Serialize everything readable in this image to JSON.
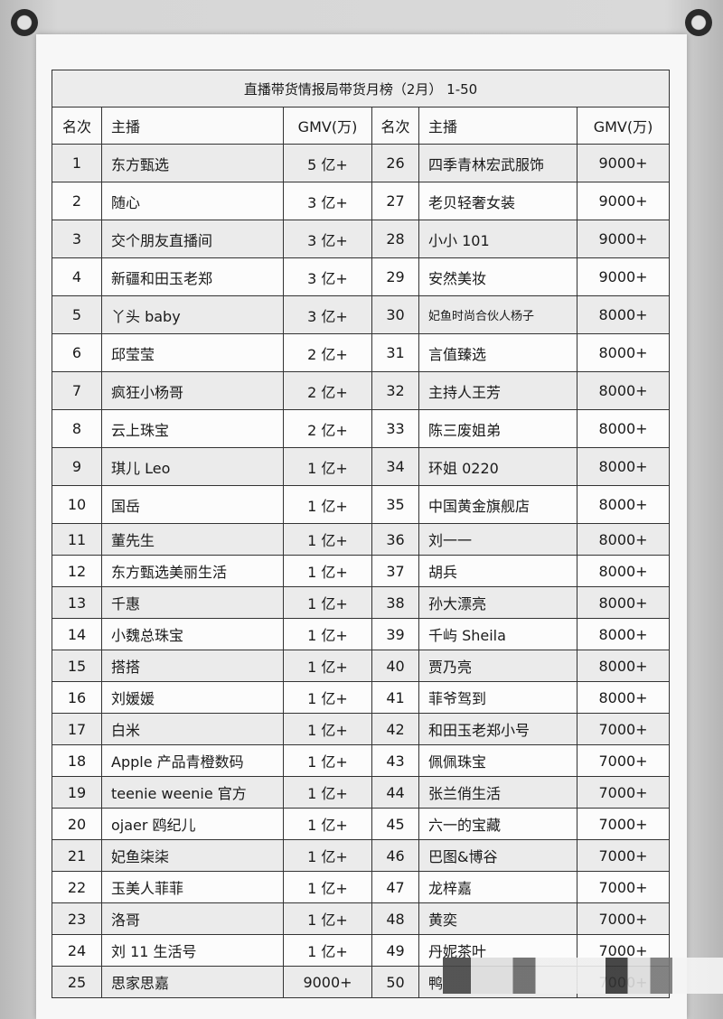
{
  "title": "直播带货情报局带货月榜（2月） 1-50",
  "headers": {
    "rank": "名次",
    "host": "主播",
    "gmv": "GMV(万)"
  },
  "left": [
    [
      "1",
      "东方甄选",
      "5 亿+"
    ],
    [
      "2",
      "随心",
      "3 亿+"
    ],
    [
      "3",
      "交个朋友直播间",
      "3 亿+"
    ],
    [
      "4",
      "新疆和田玉老郑",
      "3 亿+"
    ],
    [
      "5",
      "丫头 baby",
      "3 亿+"
    ],
    [
      "6",
      "邱莹莹",
      "2 亿+"
    ],
    [
      "7",
      "疯狂小杨哥",
      "2 亿+"
    ],
    [
      "8",
      "云上珠宝",
      "2 亿+"
    ],
    [
      "9",
      "琪儿 Leo",
      "1 亿+"
    ],
    [
      "10",
      "国岳",
      "1 亿+"
    ],
    [
      "11",
      "董先生",
      "1 亿+"
    ],
    [
      "12",
      "东方甄选美丽生活",
      "1 亿+"
    ],
    [
      "13",
      "千惠",
      "1 亿+"
    ],
    [
      "14",
      "小魏总珠宝",
      "1 亿+"
    ],
    [
      "15",
      "搭搭",
      "1 亿+"
    ],
    [
      "16",
      "刘媛媛",
      "1 亿+"
    ],
    [
      "17",
      "白米",
      "1 亿+"
    ],
    [
      "18",
      "Apple 产品青橙数码",
      "1 亿+"
    ],
    [
      "19",
      "teenie  weenie 官方",
      "1 亿+"
    ],
    [
      "20",
      "ojaer 鸥纪儿",
      "1 亿+"
    ],
    [
      "21",
      "妃鱼柒柒",
      "1 亿+"
    ],
    [
      "22",
      "玉美人菲菲",
      "1 亿+"
    ],
    [
      "23",
      "洛哥",
      "1 亿+"
    ],
    [
      "24",
      "刘 11 生活号",
      "1 亿+"
    ],
    [
      "25",
      "思家思嘉",
      "9000+"
    ]
  ],
  "right": [
    [
      "26",
      "四季青林宏武服饰",
      "9000+"
    ],
    [
      "27",
      "老贝轻奢女装",
      "9000+"
    ],
    [
      "28",
      "小小 101",
      "9000+"
    ],
    [
      "29",
      "安然美妆",
      "9000+"
    ],
    [
      "30",
      "妃鱼时尚合伙人杨子",
      "8000+"
    ],
    [
      "31",
      "言值臻选",
      "8000+"
    ],
    [
      "32",
      "主持人王芳",
      "8000+"
    ],
    [
      "33",
      "陈三废姐弟",
      "8000+"
    ],
    [
      "34",
      "环姐 0220",
      "8000+"
    ],
    [
      "35",
      "中国黄金旗舰店",
      "8000+"
    ],
    [
      "36",
      "刘一一",
      "8000+"
    ],
    [
      "37",
      "胡兵",
      "8000+"
    ],
    [
      "38",
      "孙大漂亮",
      "8000+"
    ],
    [
      "39",
      "千屿 Sheila",
      "8000+"
    ],
    [
      "40",
      "贾乃亮",
      "8000+"
    ],
    [
      "41",
      "菲爷驾到",
      "8000+"
    ],
    [
      "42",
      "和田玉老郑小号",
      "7000+"
    ],
    [
      "43",
      "佩佩珠宝",
      "7000+"
    ],
    [
      "44",
      "张兰俏生活",
      "7000+"
    ],
    [
      "45",
      "六一的宝藏",
      "7000+"
    ],
    [
      "46",
      "巴图&博谷",
      "7000+"
    ],
    [
      "47",
      "龙梓嘉",
      "7000+"
    ],
    [
      "48",
      "黄奕",
      "7000+"
    ],
    [
      "49",
      "丹妮茶叶",
      "7000+"
    ],
    [
      "50",
      "鸭",
      "7000+"
    ]
  ]
}
